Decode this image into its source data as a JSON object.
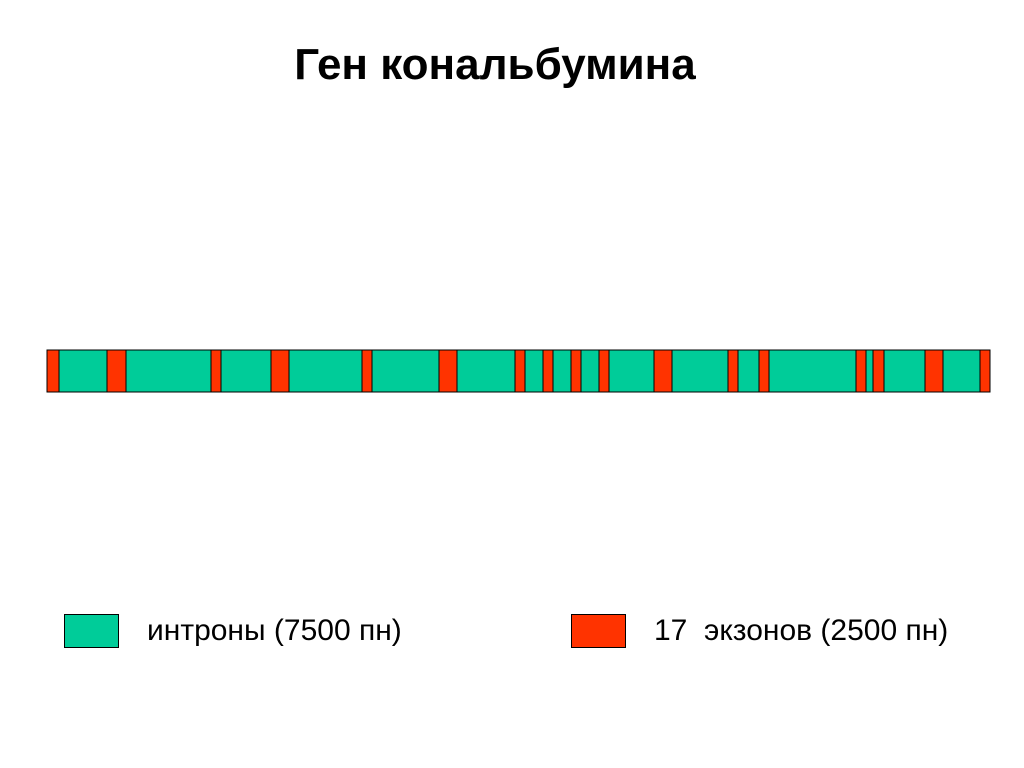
{
  "title": "Ген кональбумина",
  "colors": {
    "intron": "#00CC99",
    "exon": "#FF3300",
    "outline": "#000000"
  },
  "legend": {
    "intron_label": "интроны (7500 пн)",
    "exon_label": "17  экзонов (2500 пн)"
  },
  "gene": {
    "exon_count": 17,
    "exon_bp_total": 2500,
    "intron_bp_total": 7500
  }
}
